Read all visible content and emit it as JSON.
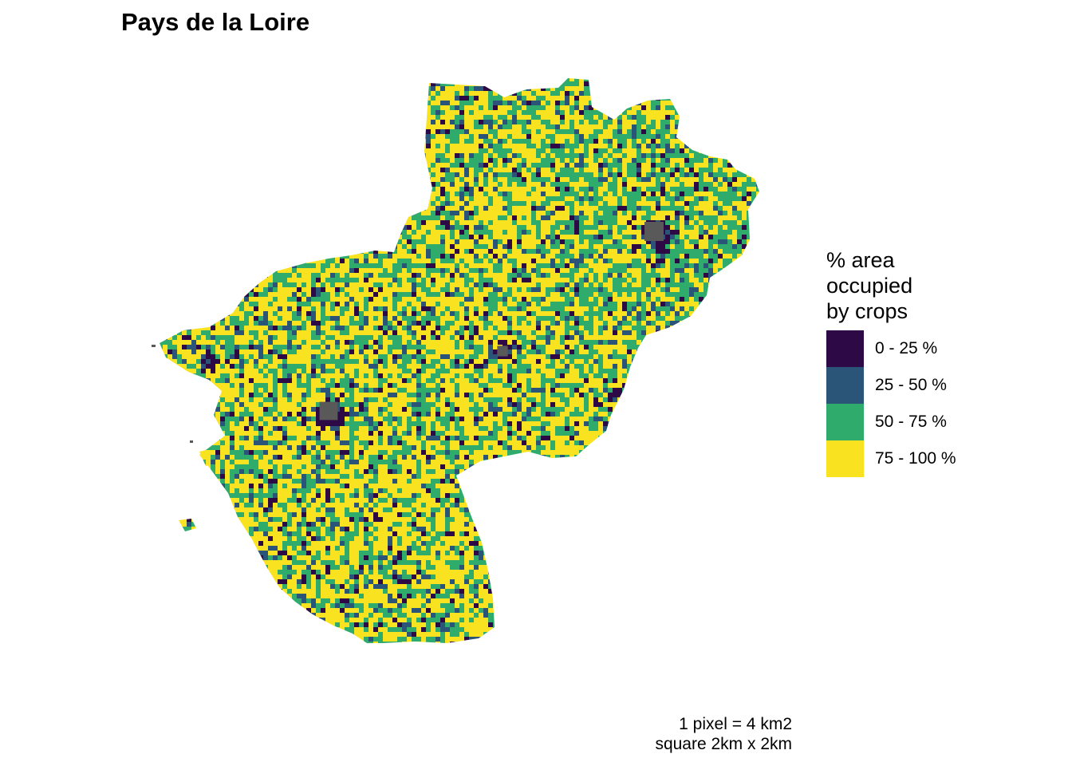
{
  "title": "Pays de la Loire",
  "map": {
    "region": "Pays de la Loire",
    "no_data_color": "#595959"
  },
  "legend": {
    "title_lines": [
      "% area",
      "occupied",
      "by crops"
    ],
    "classes": [
      {
        "label": "0 - 25 %",
        "color": "#2d0a45"
      },
      {
        "label": "25 - 50 %",
        "color": "#2b5479"
      },
      {
        "label": "50 - 75 %",
        "color": "#2fab6b"
      },
      {
        "label": "75 - 100 %",
        "color": "#f9e21f"
      }
    ]
  },
  "caption": {
    "line1": "1 pixel = 4 km2",
    "line2": "square 2km x 2km"
  }
}
